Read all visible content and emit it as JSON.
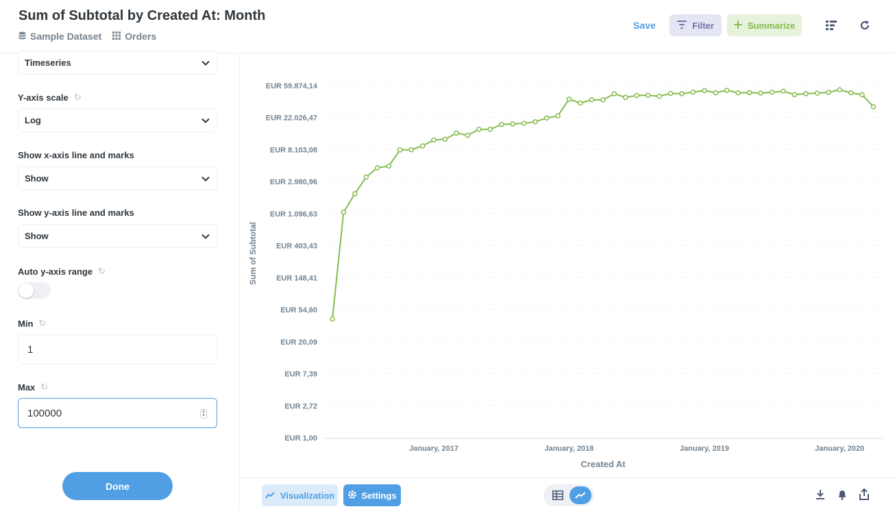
{
  "header": {
    "title": "Sum of Subtotal by Created At: Month",
    "breadcrumbs": [
      {
        "label": "Sample Dataset",
        "icon": "database-icon"
      },
      {
        "label": "Orders",
        "icon": "grid-icon"
      }
    ],
    "save_label": "Save",
    "filter_label": "Filter",
    "summarize_label": "Summarize",
    "icons": [
      "list-icon",
      "refresh-icon"
    ]
  },
  "sidebar": {
    "display_select": "Timeseries",
    "y_scale_label": "Y-axis scale",
    "y_scale_value": "Log",
    "x_axis_line_label": "Show x-axis line and marks",
    "x_axis_line_value": "Show",
    "y_axis_line_label": "Show y-axis line and marks",
    "y_axis_line_value": "Show",
    "auto_range_label": "Auto y-axis range",
    "auto_range_on": false,
    "min_label": "Min",
    "min_value": "1",
    "max_label": "Max",
    "max_value": "100000",
    "done_label": "Done"
  },
  "footer": {
    "visualization_label": "Visualization",
    "settings_label": "Settings",
    "icons": [
      "table-icon",
      "line-chart-icon",
      "download-icon",
      "bell-icon",
      "share-icon"
    ]
  },
  "colors": {
    "accent": "#509ee3",
    "series": "#84bb4c",
    "filter": "#7172ad"
  },
  "chart_data": {
    "type": "line",
    "title": "",
    "xlabel": "Created At",
    "ylabel": "Sum of Subtotal",
    "yscale": "log",
    "ylim": [
      1,
      100000
    ],
    "y_ticks": [
      "EUR 59.874,14",
      "EUR 22.026,47",
      "EUR 8.103,08",
      "EUR 2.980,96",
      "EUR 1.096,63",
      "EUR 403,43",
      "EUR 148,41",
      "EUR 54,60",
      "EUR 20,09",
      "EUR 7,39",
      "EUR 2,72",
      "EUR 1,00"
    ],
    "x_ticks": [
      "January, 2017",
      "January, 2018",
      "January, 2019",
      "January, 2020"
    ],
    "grid": true,
    "series": [
      {
        "x": [
          "2016-04",
          "2016-05",
          "2016-06",
          "2016-07",
          "2016-08",
          "2016-09",
          "2016-10",
          "2016-11",
          "2016-12",
          "2017-01",
          "2017-02",
          "2017-03",
          "2017-04",
          "2017-05",
          "2017-06",
          "2017-07",
          "2017-08",
          "2017-09",
          "2017-10",
          "2017-11",
          "2017-12",
          "2018-01",
          "2018-02",
          "2018-03",
          "2018-04",
          "2018-05",
          "2018-06",
          "2018-07",
          "2018-08",
          "2018-09",
          "2018-10",
          "2018-11",
          "2018-12",
          "2019-01",
          "2019-02",
          "2019-03",
          "2019-04",
          "2019-05",
          "2019-06",
          "2019-07",
          "2019-08",
          "2019-09",
          "2019-10",
          "2019-11",
          "2019-12",
          "2020-01",
          "2020-02",
          "2020-03",
          "2020-04"
        ],
        "values": [
          41,
          1150,
          2050,
          3450,
          4600,
          4850,
          8050,
          8100,
          9100,
          11000,
          11200,
          13600,
          12700,
          15300,
          15300,
          17800,
          18100,
          18400,
          19400,
          21800,
          23300,
          39200,
          34800,
          38500,
          38400,
          46400,
          41500,
          44000,
          44300,
          43000,
          46800,
          46600,
          48900,
          51300,
          47900,
          51700,
          47800,
          48000,
          47300,
          48800,
          50300,
          45100,
          46600,
          47300,
          48600,
          52700,
          47800,
          45000,
          30900
        ]
      }
    ]
  }
}
